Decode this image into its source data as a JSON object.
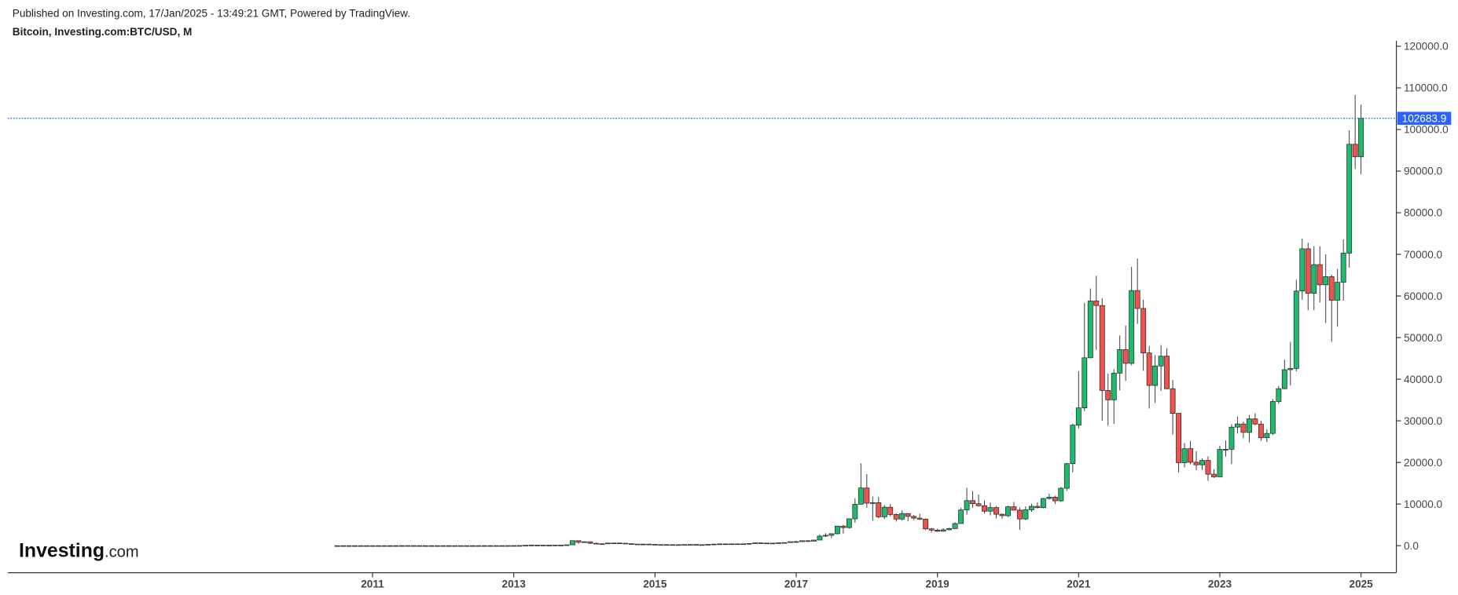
{
  "header": {
    "published": "Published on Investing.com, 17/Jan/2025 - 13:49:21 GMT, Powered by TradingView."
  },
  "logo": {
    "name": "Investing",
    "suffix": ".com"
  },
  "chart_data": {
    "type": "candlestick",
    "title": "Bitcoin, Investing.com:BTC/USD, M",
    "up_color": "#1fba6e",
    "down_color": "#f0524d",
    "last_price_color": "#2962ff",
    "xlim": [
      "2005-11",
      "2025-07"
    ],
    "xticks": [
      2011,
      2013,
      2015,
      2017,
      2019,
      2021,
      2023,
      2025
    ],
    "ylim": [
      -6500,
      121300
    ],
    "yticks": [
      {
        "value": 0,
        "label": "0.0"
      },
      {
        "value": 10000,
        "label": "10000.0"
      },
      {
        "value": 20000,
        "label": "20000.0"
      },
      {
        "value": 30000,
        "label": "30000.0"
      },
      {
        "value": 40000,
        "label": "40000.0"
      },
      {
        "value": 50000,
        "label": "50000.0"
      },
      {
        "value": 60000,
        "label": "60000.0"
      },
      {
        "value": 70000,
        "label": "70000.0"
      },
      {
        "value": 80000,
        "label": "80000.0"
      },
      {
        "value": 90000,
        "label": "90000.0"
      },
      {
        "value": 100000,
        "label": "100000.0"
      },
      {
        "value": 110000,
        "label": "110000.0"
      },
      {
        "value": 120000,
        "label": "120000.0"
      }
    ],
    "x": [
      "2010-07",
      "2010-08",
      "2010-09",
      "2010-10",
      "2010-11",
      "2010-12",
      "2011-01",
      "2011-02",
      "2011-03",
      "2011-04",
      "2011-05",
      "2011-06",
      "2011-07",
      "2011-08",
      "2011-09",
      "2011-10",
      "2011-11",
      "2011-12",
      "2012-01",
      "2012-02",
      "2012-03",
      "2012-04",
      "2012-05",
      "2012-06",
      "2012-07",
      "2012-08",
      "2012-09",
      "2012-10",
      "2012-11",
      "2012-12",
      "2013-01",
      "2013-02",
      "2013-03",
      "2013-04",
      "2013-05",
      "2013-06",
      "2013-07",
      "2013-08",
      "2013-09",
      "2013-10",
      "2013-11",
      "2013-12",
      "2014-01",
      "2014-02",
      "2014-03",
      "2014-04",
      "2014-05",
      "2014-06",
      "2014-07",
      "2014-08",
      "2014-09",
      "2014-10",
      "2014-11",
      "2014-12",
      "2015-01",
      "2015-02",
      "2015-03",
      "2015-04",
      "2015-05",
      "2015-06",
      "2015-07",
      "2015-08",
      "2015-09",
      "2015-10",
      "2015-11",
      "2015-12",
      "2016-01",
      "2016-02",
      "2016-03",
      "2016-04",
      "2016-05",
      "2016-06",
      "2016-07",
      "2016-08",
      "2016-09",
      "2016-10",
      "2016-11",
      "2016-12",
      "2017-01",
      "2017-02",
      "2017-03",
      "2017-04",
      "2017-05",
      "2017-06",
      "2017-07",
      "2017-08",
      "2017-09",
      "2017-10",
      "2017-11",
      "2017-12",
      "2018-01",
      "2018-02",
      "2018-03",
      "2018-04",
      "2018-05",
      "2018-06",
      "2018-07",
      "2018-08",
      "2018-09",
      "2018-10",
      "2018-11",
      "2018-12",
      "2019-01",
      "2019-02",
      "2019-03",
      "2019-04",
      "2019-05",
      "2019-06",
      "2019-07",
      "2019-08",
      "2019-09",
      "2019-10",
      "2019-11",
      "2019-12",
      "2020-01",
      "2020-02",
      "2020-03",
      "2020-04",
      "2020-05",
      "2020-06",
      "2020-07",
      "2020-08",
      "2020-09",
      "2020-10",
      "2020-11",
      "2020-12",
      "2021-01",
      "2021-02",
      "2021-03",
      "2021-04",
      "2021-05",
      "2021-06",
      "2021-07",
      "2021-08",
      "2021-09",
      "2021-10",
      "2021-11",
      "2021-12",
      "2022-01",
      "2022-02",
      "2022-03",
      "2022-04",
      "2022-05",
      "2022-06",
      "2022-07",
      "2022-08",
      "2022-09",
      "2022-10",
      "2022-11",
      "2022-12",
      "2023-01",
      "2023-02",
      "2023-03",
      "2023-04",
      "2023-05",
      "2023-06",
      "2023-07",
      "2023-08",
      "2023-09",
      "2023-10",
      "2023-11",
      "2023-12",
      "2024-01",
      "2024-02",
      "2024-03",
      "2024-04",
      "2024-05",
      "2024-06",
      "2024-07",
      "2024-08",
      "2024-09",
      "2024-10",
      "2024-11",
      "2024-12",
      "2025-01"
    ],
    "open": [
      0.05,
      0.07,
      0.06,
      0.06,
      0.19,
      0.21,
      0.3,
      0.52,
      0.86,
      0.78,
      3.5,
      8.7,
      16.1,
      13.4,
      8.2,
      5.1,
      3.3,
      3.0,
      4.7,
      5.5,
      4.9,
      4.9,
      5.0,
      5.2,
      6.7,
      9.4,
      10.2,
      12.4,
      11.2,
      12.6,
      13.5,
      20.4,
      33.4,
      93,
      139,
      129,
      97,
      106,
      135,
      133,
      204,
      1205,
      805,
      938,
      573,
      458,
      448,
      628,
      640,
      589,
      478,
      389,
      338,
      378,
      320,
      218,
      254,
      244,
      236,
      230,
      264,
      284,
      231,
      236,
      314,
      378,
      430,
      369,
      437,
      416,
      448,
      531,
      674,
      624,
      575,
      609,
      701,
      745,
      964,
      970,
      1190,
      1080,
      1350,
      2300,
      2480,
      2875,
      4700,
      4340,
      6450,
      9950,
      13860,
      10220,
      10330,
      6930,
      9240,
      7500,
      6390,
      7730,
      7030,
      6625,
      6370,
      4040,
      3740,
      3460,
      3820,
      4100,
      5320,
      8570,
      10820,
      10080,
      9600,
      8290,
      9150,
      7550,
      7200,
      9350,
      8540,
      6410,
      8630,
      9450,
      9140,
      11330,
      11650,
      10780,
      13800,
      19700,
      28950,
      33100,
      45140,
      58800,
      57700,
      37300,
      35040,
      41460,
      47100,
      43800,
      61300,
      57000,
      46300,
      38500,
      43180,
      45530,
      37710,
      31800,
      19930,
      23300,
      20050,
      19420,
      20490,
      17170,
      16540,
      23130,
      23150,
      28480,
      29250,
      27220,
      30470,
      29230,
      25940,
      26970,
      34640,
      37720,
      42280,
      42580,
      61180,
      71330,
      60640,
      67530,
      62680,
      64630,
      58970,
      63300,
      70290,
      96450,
      93430
    ],
    "high": [
      0.1,
      0.07,
      0.07,
      0.2,
      0.5,
      0.3,
      0.52,
      1.1,
      0.95,
      3.5,
      8.9,
      32,
      16.1,
      13.5,
      8.2,
      5.1,
      3.5,
      4.8,
      7.4,
      6.3,
      5.4,
      5.3,
      5.2,
      6.8,
      9.5,
      15.4,
      12.8,
      12.5,
      12.6,
      13.6,
      20.6,
      33.5,
      95,
      266,
      140,
      129,
      110,
      136,
      145,
      220,
      1242,
      1156,
      1020,
      940,
      720,
      540,
      630,
      680,
      650,
      600,
      490,
      415,
      460,
      385,
      320,
      265,
      300,
      260,
      248,
      268,
      315,
      285,
      243,
      335,
      490,
      466,
      460,
      440,
      440,
      460,
      550,
      780,
      700,
      625,
      612,
      720,
      755,
      967,
      1150,
      1200,
      1300,
      1350,
      2750,
      3000,
      2950,
      4760,
      5000,
      6480,
      11400,
      19800,
      17200,
      11800,
      11700,
      9750,
      9990,
      7780,
      8500,
      7770,
      7400,
      7680,
      6570,
      4250,
      4070,
      4190,
      4290,
      5620,
      9100,
      13900,
      13130,
      12320,
      10900,
      10370,
      9500,
      7740,
      9580,
      10500,
      9190,
      9470,
      10080,
      10380,
      11450,
      12470,
      12050,
      14100,
      19900,
      29300,
      41950,
      58330,
      61800,
      64850,
      59500,
      41300,
      42400,
      50500,
      52900,
      67000,
      69000,
      59100,
      47990,
      45800,
      48200,
      47450,
      39800,
      31900,
      24670,
      25200,
      22700,
      21000,
      21450,
      18370,
      23950,
      25250,
      29200,
      31000,
      29800,
      31400,
      31800,
      30000,
      28000,
      35200,
      38400,
      44700,
      48970,
      63900,
      73800,
      72800,
      71950,
      71950,
      70000,
      65100,
      66500,
      73600,
      99800,
      108300,
      106000
    ],
    "low": [
      0.05,
      0.06,
      0.06,
      0.06,
      0.19,
      0.2,
      0.3,
      0.52,
      0.7,
      0.78,
      3,
      8.7,
      12.5,
      6,
      4.5,
      2.1,
      2,
      2.8,
      4.7,
      4.3,
      4.7,
      4.8,
      4.9,
      5.2,
      6.6,
      7.1,
      9.8,
      10.3,
      10.3,
      12.5,
      13.2,
      19.8,
      33,
      50,
      92,
      90,
      65,
      100,
      110,
      120,
      203,
      455,
      760,
      400,
      440,
      340,
      420,
      550,
      570,
      440,
      380,
      275,
      320,
      300,
      170,
      210,
      240,
      215,
      225,
      222,
      255,
      200,
      228,
      235,
      305,
      350,
      360,
      365,
      405,
      415,
      440,
      520,
      460,
      470,
      570,
      605,
      680,
      740,
      750,
      920,
      890,
      1080,
      1340,
      2100,
      1830,
      2680,
      2900,
      4100,
      5500,
      9900,
      9100,
      6000,
      6600,
      6430,
      7040,
      5780,
      6070,
      5880,
      6120,
      6180,
      3700,
      3150,
      3350,
      3390,
      3730,
      4100,
      5300,
      7460,
      9100,
      9340,
      7710,
      7300,
      6530,
      6440,
      6850,
      8460,
      3800,
      6160,
      8140,
      8920,
      8980,
      11070,
      10000,
      10530,
      13200,
      17600,
      28130,
      32300,
      45000,
      47050,
      30000,
      28800,
      29280,
      37300,
      39600,
      43300,
      53300,
      42000,
      32950,
      34300,
      37200,
      37600,
      26700,
      17600,
      18800,
      19600,
      18150,
      18200,
      15600,
      16300,
      16500,
      21400,
      19600,
      26950,
      25850,
      24800,
      28900,
      25200,
      24900,
      26600,
      34100,
      37600,
      38500,
      41880,
      59100,
      56550,
      56600,
      58400,
      53500,
      49000,
      52600,
      58900,
      66800,
      90500,
      89200
    ],
    "close": [
      0.07,
      0.06,
      0.06,
      0.19,
      0.21,
      0.3,
      0.52,
      0.86,
      0.78,
      3.5,
      8.7,
      16.1,
      13.4,
      8.2,
      5.1,
      3.3,
      3.0,
      4.7,
      5.5,
      4.9,
      4.9,
      5.0,
      5.2,
      6.7,
      9.4,
      10.2,
      12.4,
      11.2,
      12.6,
      13.5,
      20.4,
      33.4,
      93,
      139,
      129,
      97,
      106,
      135,
      133,
      204,
      1205,
      805,
      938,
      573,
      458,
      448,
      628,
      640,
      589,
      478,
      389,
      338,
      378,
      320,
      218,
      254,
      244,
      236,
      230,
      264,
      284,
      231,
      236,
      314,
      378,
      430,
      369,
      437,
      416,
      448,
      531,
      674,
      624,
      575,
      609,
      701,
      745,
      964,
      970,
      1190,
      1080,
      1350,
      2300,
      2480,
      2875,
      4700,
      4340,
      6450,
      9950,
      13860,
      10220,
      10330,
      6930,
      9240,
      7500,
      6390,
      7730,
      7030,
      6625,
      6370,
      4040,
      3740,
      3460,
      3820,
      4100,
      5320,
      8570,
      10820,
      10080,
      9600,
      8290,
      9150,
      7550,
      7200,
      9350,
      8540,
      6410,
      8630,
      9450,
      9140,
      11330,
      11650,
      10780,
      13800,
      19700,
      28950,
      33100,
      45140,
      58800,
      57700,
      37300,
      35040,
      41460,
      47100,
      43800,
      61300,
      57000,
      46300,
      38500,
      43180,
      45530,
      37710,
      31800,
      19930,
      23300,
      20050,
      19420,
      20490,
      17170,
      16540,
      23130,
      23150,
      28480,
      29250,
      27220,
      30470,
      29230,
      25940,
      26970,
      34640,
      37720,
      42280,
      42580,
      61180,
      71330,
      60640,
      67530,
      62680,
      64630,
      58970,
      63300,
      70290,
      96450,
      93430,
      102683.9
    ]
  }
}
